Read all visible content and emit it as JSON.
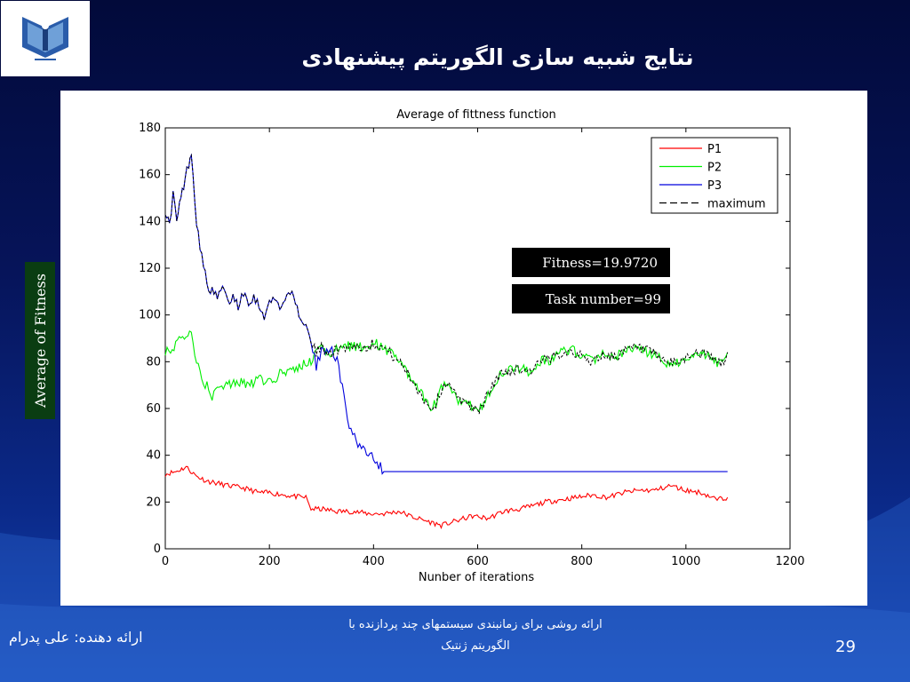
{
  "slide": {
    "title": "نتایج شبیه سازی الگوریتم پیشنهادی",
    "side_label": "Average of Fitness",
    "footer_line1": "ارائه روشی برای زمانبندی سیستمهای چند پردازنده با",
    "footer_line2": "الگوریتم ژنتیک",
    "presenter": "ارائه دهنده: علی پدرام",
    "page_number": "29",
    "colors": {
      "background": "#06145a",
      "side_label_bg": "#0a3d12"
    }
  },
  "chart_data": {
    "type": "line",
    "title": "Average of fittness function",
    "xlabel": "Nunber of iterations",
    "ylabel": "",
    "xlim": [
      0,
      1200
    ],
    "ylim": [
      0,
      180
    ],
    "xticks": [
      0,
      200,
      400,
      600,
      800,
      1000,
      1200
    ],
    "yticks": [
      0,
      20,
      40,
      60,
      80,
      100,
      120,
      140,
      160,
      180
    ],
    "grid": false,
    "legend_position": "top-right",
    "annotations": [
      "Fitness=19.9720",
      "Task number=99"
    ],
    "series": [
      {
        "name": "P1",
        "color": "#ff0000",
        "style": "solid",
        "points": [
          [
            0,
            32
          ],
          [
            20,
            33
          ],
          [
            40,
            35
          ],
          [
            60,
            31
          ],
          [
            80,
            29
          ],
          [
            100,
            28
          ],
          [
            120,
            27
          ],
          [
            150,
            26
          ],
          [
            180,
            24
          ],
          [
            200,
            24
          ],
          [
            230,
            23
          ],
          [
            260,
            22
          ],
          [
            270,
            22
          ],
          [
            280,
            17
          ],
          [
            300,
            17
          ],
          [
            330,
            16
          ],
          [
            360,
            16
          ],
          [
            390,
            15
          ],
          [
            420,
            15
          ],
          [
            450,
            16
          ],
          [
            470,
            14
          ],
          [
            500,
            12
          ],
          [
            530,
            10
          ],
          [
            560,
            12
          ],
          [
            590,
            14
          ],
          [
            620,
            13
          ],
          [
            650,
            16
          ],
          [
            680,
            17
          ],
          [
            700,
            18
          ],
          [
            730,
            20
          ],
          [
            760,
            21
          ],
          [
            790,
            22
          ],
          [
            820,
            23
          ],
          [
            850,
            22
          ],
          [
            880,
            24
          ],
          [
            910,
            25
          ],
          [
            940,
            25
          ],
          [
            970,
            27
          ],
          [
            1000,
            25
          ],
          [
            1030,
            24
          ],
          [
            1060,
            21
          ],
          [
            1080,
            22
          ]
        ]
      },
      {
        "name": "P2",
        "color": "#00ee00",
        "style": "solid",
        "points": [
          [
            0,
            85
          ],
          [
            10,
            84
          ],
          [
            20,
            88
          ],
          [
            30,
            92
          ],
          [
            40,
            90
          ],
          [
            50,
            93
          ],
          [
            60,
            80
          ],
          [
            70,
            72
          ],
          [
            80,
            70
          ],
          [
            90,
            65
          ],
          [
            100,
            68
          ],
          [
            120,
            70
          ],
          [
            140,
            72
          ],
          [
            160,
            70
          ],
          [
            180,
            73
          ],
          [
            200,
            71
          ],
          [
            220,
            75
          ],
          [
            240,
            76
          ],
          [
            260,
            78
          ],
          [
            280,
            80
          ],
          [
            290,
            84
          ],
          [
            300,
            86
          ],
          [
            320,
            84
          ],
          [
            340,
            86
          ],
          [
            360,
            87
          ],
          [
            380,
            86
          ],
          [
            400,
            88
          ],
          [
            420,
            86
          ],
          [
            440,
            82
          ],
          [
            460,
            77
          ],
          [
            480,
            70
          ],
          [
            500,
            63
          ],
          [
            510,
            60
          ],
          [
            520,
            62
          ],
          [
            530,
            68
          ],
          [
            545,
            72
          ],
          [
            560,
            64
          ],
          [
            580,
            63
          ],
          [
            600,
            58
          ],
          [
            620,
            66
          ],
          [
            640,
            74
          ],
          [
            660,
            76
          ],
          [
            680,
            77
          ],
          [
            700,
            76
          ],
          [
            720,
            80
          ],
          [
            740,
            81
          ],
          [
            760,
            84
          ],
          [
            780,
            85
          ],
          [
            800,
            82
          ],
          [
            820,
            80
          ],
          [
            840,
            83
          ],
          [
            860,
            82
          ],
          [
            880,
            84
          ],
          [
            900,
            86
          ],
          [
            920,
            85
          ],
          [
            940,
            83
          ],
          [
            960,
            80
          ],
          [
            980,
            79
          ],
          [
            1000,
            82
          ],
          [
            1020,
            84
          ],
          [
            1040,
            83
          ],
          [
            1060,
            80
          ],
          [
            1070,
            79
          ],
          [
            1080,
            84
          ]
        ]
      },
      {
        "name": "P3",
        "color": "#0000dd",
        "style": "solid",
        "points": [
          [
            0,
            145
          ],
          [
            8,
            138
          ],
          [
            15,
            152
          ],
          [
            22,
            140
          ],
          [
            30,
            150
          ],
          [
            38,
            158
          ],
          [
            45,
            165
          ],
          [
            50,
            170
          ],
          [
            60,
            140
          ],
          [
            70,
            125
          ],
          [
            80,
            113
          ],
          [
            90,
            110
          ],
          [
            100,
            107
          ],
          [
            110,
            112
          ],
          [
            120,
            105
          ],
          [
            130,
            108
          ],
          [
            140,
            104
          ],
          [
            150,
            110
          ],
          [
            160,
            106
          ],
          [
            170,
            108
          ],
          [
            180,
            104
          ],
          [
            190,
            100
          ],
          [
            200,
            105
          ],
          [
            210,
            107
          ],
          [
            220,
            104
          ],
          [
            230,
            106
          ],
          [
            240,
            111
          ],
          [
            250,
            103
          ],
          [
            260,
            100
          ],
          [
            270,
            95
          ],
          [
            280,
            88
          ],
          [
            290,
            78
          ],
          [
            300,
            84
          ],
          [
            310,
            86
          ],
          [
            320,
            86
          ],
          [
            330,
            80
          ],
          [
            340,
            70
          ],
          [
            350,
            55
          ],
          [
            360,
            50
          ],
          [
            370,
            45
          ],
          [
            380,
            43
          ],
          [
            390,
            41
          ],
          [
            400,
            40
          ],
          [
            410,
            36
          ],
          [
            420,
            33
          ],
          [
            1080,
            33
          ]
        ]
      },
      {
        "name": "maximum",
        "color": "#000000",
        "style": "dashed",
        "points": [
          [
            0,
            145
          ],
          [
            8,
            138
          ],
          [
            15,
            152
          ],
          [
            22,
            140
          ],
          [
            30,
            150
          ],
          [
            38,
            158
          ],
          [
            45,
            165
          ],
          [
            50,
            170
          ],
          [
            60,
            140
          ],
          [
            70,
            125
          ],
          [
            80,
            113
          ],
          [
            90,
            110
          ],
          [
            100,
            107
          ],
          [
            110,
            112
          ],
          [
            120,
            105
          ],
          [
            130,
            108
          ],
          [
            140,
            104
          ],
          [
            150,
            110
          ],
          [
            160,
            106
          ],
          [
            170,
            108
          ],
          [
            180,
            104
          ],
          [
            190,
            100
          ],
          [
            200,
            105
          ],
          [
            210,
            107
          ],
          [
            220,
            104
          ],
          [
            230,
            106
          ],
          [
            240,
            111
          ],
          [
            250,
            103
          ],
          [
            260,
            100
          ],
          [
            270,
            95
          ],
          [
            280,
            88
          ],
          [
            290,
            84
          ],
          [
            300,
            86
          ],
          [
            320,
            84
          ],
          [
            340,
            86
          ],
          [
            360,
            87
          ],
          [
            380,
            86
          ],
          [
            400,
            88
          ],
          [
            420,
            86
          ],
          [
            440,
            82
          ],
          [
            460,
            77
          ],
          [
            480,
            70
          ],
          [
            500,
            63
          ],
          [
            510,
            60
          ],
          [
            520,
            62
          ],
          [
            530,
            68
          ],
          [
            545,
            72
          ],
          [
            560,
            64
          ],
          [
            580,
            63
          ],
          [
            600,
            58
          ],
          [
            620,
            66
          ],
          [
            640,
            74
          ],
          [
            660,
            76
          ],
          [
            680,
            77
          ],
          [
            700,
            76
          ],
          [
            720,
            80
          ],
          [
            740,
            81
          ],
          [
            760,
            84
          ],
          [
            780,
            85
          ],
          [
            800,
            82
          ],
          [
            820,
            80
          ],
          [
            840,
            83
          ],
          [
            860,
            82
          ],
          [
            880,
            84
          ],
          [
            900,
            86
          ],
          [
            920,
            85
          ],
          [
            940,
            83
          ],
          [
            960,
            80
          ],
          [
            980,
            79
          ],
          [
            1000,
            82
          ],
          [
            1020,
            84
          ],
          [
            1040,
            83
          ],
          [
            1060,
            80
          ],
          [
            1070,
            79
          ],
          [
            1080,
            84
          ]
        ]
      }
    ]
  }
}
